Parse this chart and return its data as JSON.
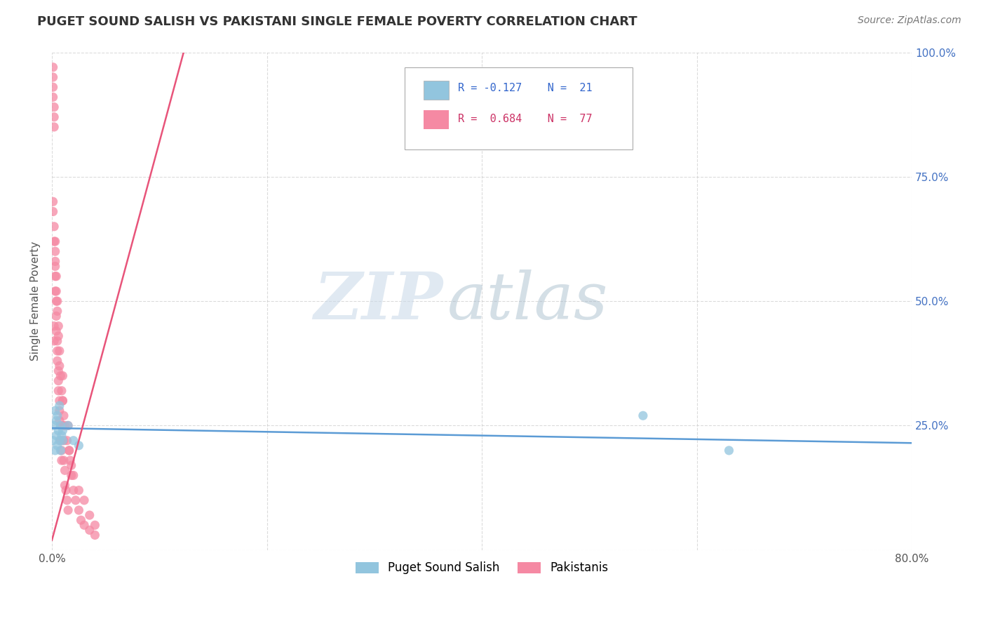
{
  "title": "PUGET SOUND SALISH VS PAKISTANI SINGLE FEMALE POVERTY CORRELATION CHART",
  "source": "Source: ZipAtlas.com",
  "ylabel": "Single Female Poverty",
  "xlim": [
    0.0,
    0.8
  ],
  "ylim": [
    0.0,
    1.0
  ],
  "ytick_labels_right": [
    "",
    "25.0%",
    "50.0%",
    "75.0%",
    "100.0%"
  ],
  "watermark_zip": "ZIP",
  "watermark_atlas": "atlas",
  "legend_r1": "R = -0.127",
  "legend_n1": "N =  21",
  "legend_r2": "R =  0.684",
  "legend_n2": "N =  77",
  "blue_color": "#92c5de",
  "pink_color": "#f589a3",
  "blue_line_color": "#5b9bd5",
  "pink_line_color": "#e8547a",
  "grid_color": "#cccccc",
  "label1": "Puget Sound Salish",
  "label2": "Pakistanis",
  "puget_x": [
    0.001,
    0.002,
    0.003,
    0.003,
    0.004,
    0.004,
    0.005,
    0.005,
    0.006,
    0.007,
    0.007,
    0.008,
    0.008,
    0.009,
    0.01,
    0.01,
    0.015,
    0.02,
    0.025,
    0.55,
    0.63
  ],
  "puget_y": [
    0.22,
    0.25,
    0.2,
    0.28,
    0.23,
    0.26,
    0.21,
    0.27,
    0.24,
    0.22,
    0.29,
    0.2,
    0.25,
    0.23,
    0.24,
    0.22,
    0.25,
    0.22,
    0.21,
    0.27,
    0.2
  ],
  "pak_x": [
    0.001,
    0.001,
    0.001,
    0.001,
    0.002,
    0.002,
    0.002,
    0.002,
    0.002,
    0.003,
    0.003,
    0.003,
    0.003,
    0.004,
    0.004,
    0.004,
    0.005,
    0.005,
    0.005,
    0.006,
    0.006,
    0.006,
    0.007,
    0.007,
    0.007,
    0.008,
    0.008,
    0.009,
    0.009,
    0.01,
    0.01,
    0.01,
    0.011,
    0.011,
    0.012,
    0.012,
    0.013,
    0.014,
    0.015,
    0.015,
    0.016,
    0.017,
    0.018,
    0.02,
    0.022,
    0.025,
    0.027,
    0.03,
    0.035,
    0.04,
    0.001,
    0.001,
    0.002,
    0.002,
    0.003,
    0.003,
    0.004,
    0.004,
    0.005,
    0.005,
    0.006,
    0.006,
    0.007,
    0.007,
    0.008,
    0.009,
    0.01,
    0.011,
    0.012,
    0.014,
    0.016,
    0.018,
    0.02,
    0.025,
    0.03,
    0.035,
    0.04
  ],
  "pak_y": [
    0.97,
    0.95,
    0.93,
    0.91,
    0.89,
    0.87,
    0.85,
    0.45,
    0.42,
    0.62,
    0.58,
    0.55,
    0.52,
    0.5,
    0.47,
    0.44,
    0.42,
    0.4,
    0.38,
    0.36,
    0.34,
    0.32,
    0.3,
    0.28,
    0.26,
    0.25,
    0.22,
    0.2,
    0.18,
    0.35,
    0.3,
    0.25,
    0.22,
    0.18,
    0.16,
    0.13,
    0.12,
    0.1,
    0.08,
    0.25,
    0.2,
    0.18,
    0.15,
    0.12,
    0.1,
    0.08,
    0.06,
    0.05,
    0.04,
    0.03,
    0.7,
    0.68,
    0.65,
    0.62,
    0.6,
    0.57,
    0.55,
    0.52,
    0.5,
    0.48,
    0.45,
    0.43,
    0.4,
    0.37,
    0.35,
    0.32,
    0.3,
    0.27,
    0.25,
    0.22,
    0.2,
    0.17,
    0.15,
    0.12,
    0.1,
    0.07,
    0.05
  ],
  "puget_line_x": [
    0.0,
    0.8
  ],
  "puget_line_y": [
    0.245,
    0.215
  ],
  "pak_line_x": [
    0.0,
    0.125
  ],
  "pak_line_y": [
    0.02,
    1.02
  ]
}
